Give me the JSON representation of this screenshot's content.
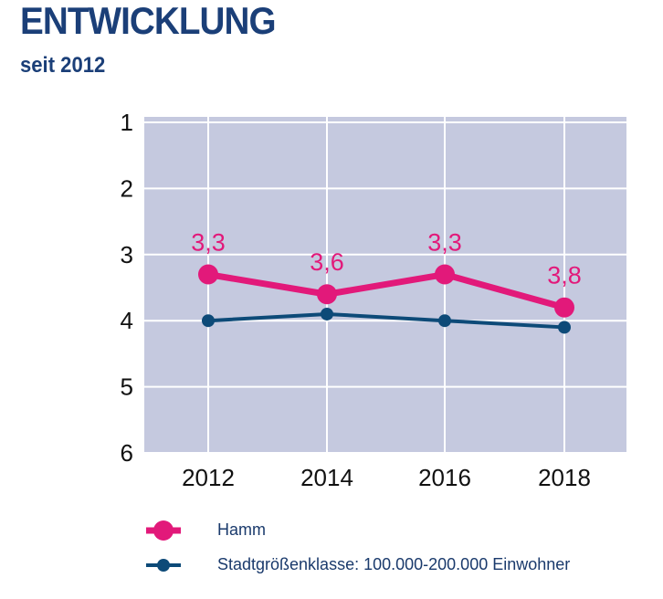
{
  "header": {
    "title": "ENTWICKLUNG",
    "subtitle": "seit 2012"
  },
  "colors": {
    "accent_primary": "#e2197a",
    "accent_secondary": "#0d4a78",
    "plot_background": "#c5c9df",
    "grid": "#ffffff",
    "title": "#1b3f78"
  },
  "chart_data": {
    "type": "line",
    "title": "",
    "xlabel": "",
    "ylabel": "",
    "x": [
      "2012",
      "2014",
      "2016",
      "2018"
    ],
    "ylim": [
      1,
      6
    ],
    "y_inverted": true,
    "yticks": [
      "1",
      "2",
      "3",
      "4",
      "5",
      "6"
    ],
    "grid": true,
    "legend": "bottom",
    "series": [
      {
        "name": "Hamm",
        "values": [
          3.3,
          3.6,
          3.3,
          3.8
        ],
        "labels": [
          "3,3",
          "3,6",
          "3,3",
          "3,8"
        ],
        "color": "#e2197a"
      },
      {
        "name": "Stadtgrößenklasse: 100.000-200.000 Einwohner",
        "values": [
          4.0,
          3.9,
          4.0,
          4.1
        ],
        "color": "#0d4a78"
      }
    ]
  }
}
